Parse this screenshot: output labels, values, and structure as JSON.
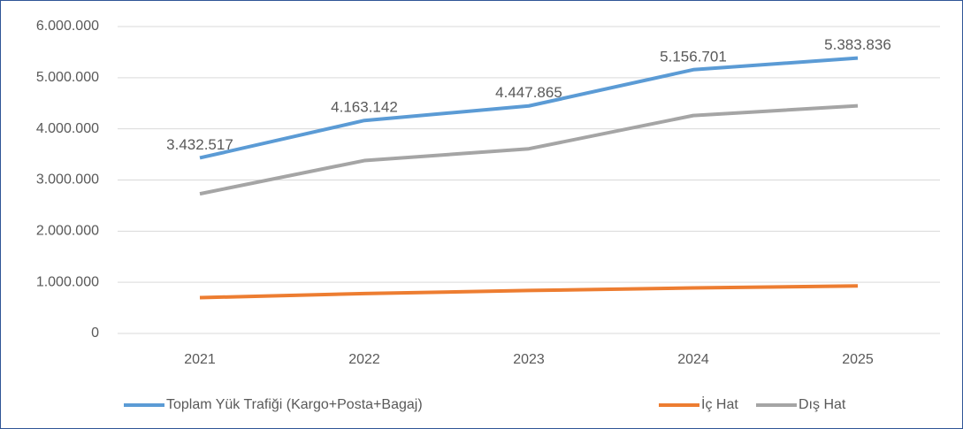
{
  "chart_data": {
    "type": "line",
    "categories": [
      "2021",
      "2022",
      "2023",
      "2024",
      "2025"
    ],
    "series": [
      {
        "name": "Toplam Yük Trafiği (Kargo+Posta+Bagaj)",
        "color": "#5b9bd5",
        "values": [
          3432517,
          4163142,
          4447865,
          5156701,
          5383836
        ],
        "value_labels": [
          "3.432.517",
          "4.163.142",
          "4.447.865",
          "5.156.701",
          "5.383.836"
        ]
      },
      {
        "name": "İç Hat",
        "color": "#ed7d31",
        "values": [
          700000,
          780000,
          840000,
          890000,
          930000
        ]
      },
      {
        "name": "Dış Hat",
        "color": "#a5a5a5",
        "values": [
          2730000,
          3380000,
          3610000,
          4260000,
          4450000
        ]
      }
    ],
    "ylim": [
      0,
      6000000
    ],
    "yticks": [
      0,
      {
        "value": 1000000,
        "label": "1.000.000"
      },
      {
        "value": 2000000,
        "label": "2.000.000"
      },
      {
        "value": 3000000,
        "label": "3.000.000"
      },
      {
        "value": 4000000,
        "label": "4.000.000"
      },
      {
        "value": 5000000,
        "label": "5.000.000"
      },
      {
        "value": 6000000,
        "label": "6.000.000"
      }
    ],
    "grid": true,
    "legend": "bottom"
  }
}
